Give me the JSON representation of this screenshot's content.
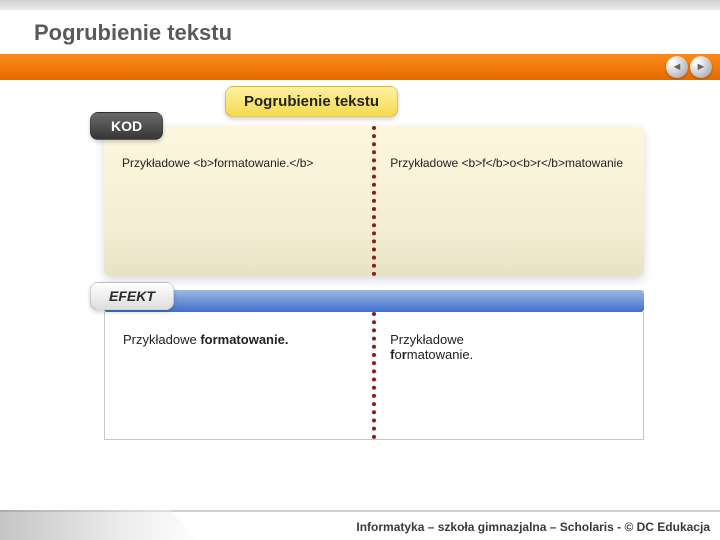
{
  "colors": {
    "orange_bar": "#ef7200",
    "kod_box_bg": "#f9f3d8",
    "yellow_pill": "#f4da4e",
    "dark_pill": "#3c3c3c",
    "blue_strip": "#4b78d0",
    "divider": "#8b1a1a"
  },
  "page_title": "Pogrubienie tekstu",
  "nav": {
    "prev": "◄",
    "next": "►"
  },
  "pill_main": "Pogrubienie tekstu",
  "pill_kod": "KOD",
  "pill_efekt": "EFEKT",
  "code": {
    "left": "Przykładowe <b>formatowanie.</b>",
    "right": "Przykładowe <b>f</b>o<b>r</b>matowanie"
  },
  "effect": {
    "left_plain": "Przykładowe ",
    "left_bold": "formatowanie.",
    "right_line1": "Przykładowe",
    "right_line2_b1": "f",
    "right_line2_p1": "o",
    "right_line2_b2": "r",
    "right_line2_p2": "matowanie."
  },
  "footer": "Informatyka – szkoła gimnazjalna – Scholaris - © DC Edukacja"
}
